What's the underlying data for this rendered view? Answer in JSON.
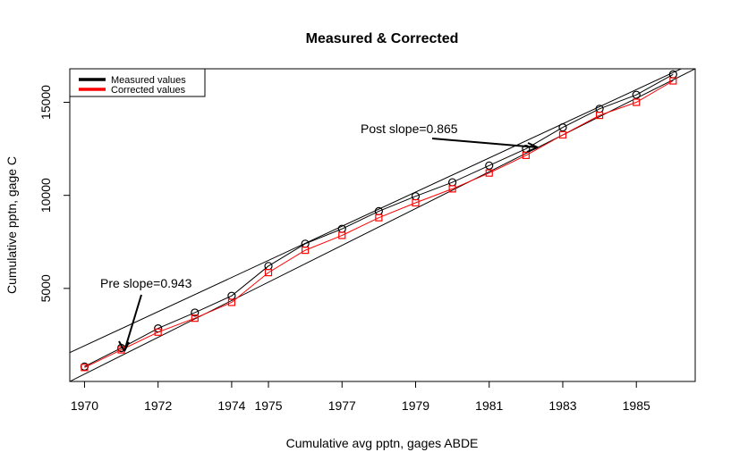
{
  "chart_data": {
    "type": "line",
    "title": "Measured & Corrected",
    "xlabel": "Cumulative avg pptn, gages ABDE",
    "ylabel": "Cumulative pptn, gage C",
    "ylim": [
      0,
      16800
    ],
    "y_ticks": [
      5000,
      10000,
      15000
    ],
    "x_tick_labels": [
      "1970",
      "1972",
      "1974",
      "1975",
      "1977",
      "1979",
      "1981",
      "1983",
      "1985"
    ],
    "x_tick_years": [
      1970,
      1972,
      1974,
      1975,
      1977,
      1979,
      1981,
      1983,
      1985
    ],
    "years": [
      1970,
      1971,
      1972,
      1973,
      1974,
      1975,
      1976,
      1977,
      1978,
      1979,
      1980,
      1981,
      1982,
      1983,
      1984,
      1985,
      1986
    ],
    "series": [
      {
        "name": "Measured values",
        "color": "#000000",
        "marker": "circle",
        "values": [
          800,
          1800,
          2850,
          3700,
          4600,
          6200,
          7400,
          8200,
          9150,
          9950,
          10700,
          11600,
          12500,
          13650,
          14650,
          15400,
          16500
        ]
      },
      {
        "name": "Corrected values",
        "color": "#ff0000",
        "marker": "square",
        "values": [
          750,
          1700,
          2650,
          3400,
          4250,
          5850,
          7050,
          7850,
          8800,
          9600,
          10350,
          11200,
          12150,
          13250,
          14300,
          15000,
          16150
        ]
      }
    ],
    "fit_lines": [
      {
        "label": "Pre slope=0.943",
        "points": [
          [
            1969.6,
            1550
          ],
          [
            1986.6,
            17150
          ]
        ]
      },
      {
        "label": "Post slope=0.865",
        "points": [
          [
            1969.6,
            0
          ],
          [
            1986.6,
            16800
          ]
        ]
      }
    ],
    "legend_position": "top-left",
    "grid": false
  }
}
